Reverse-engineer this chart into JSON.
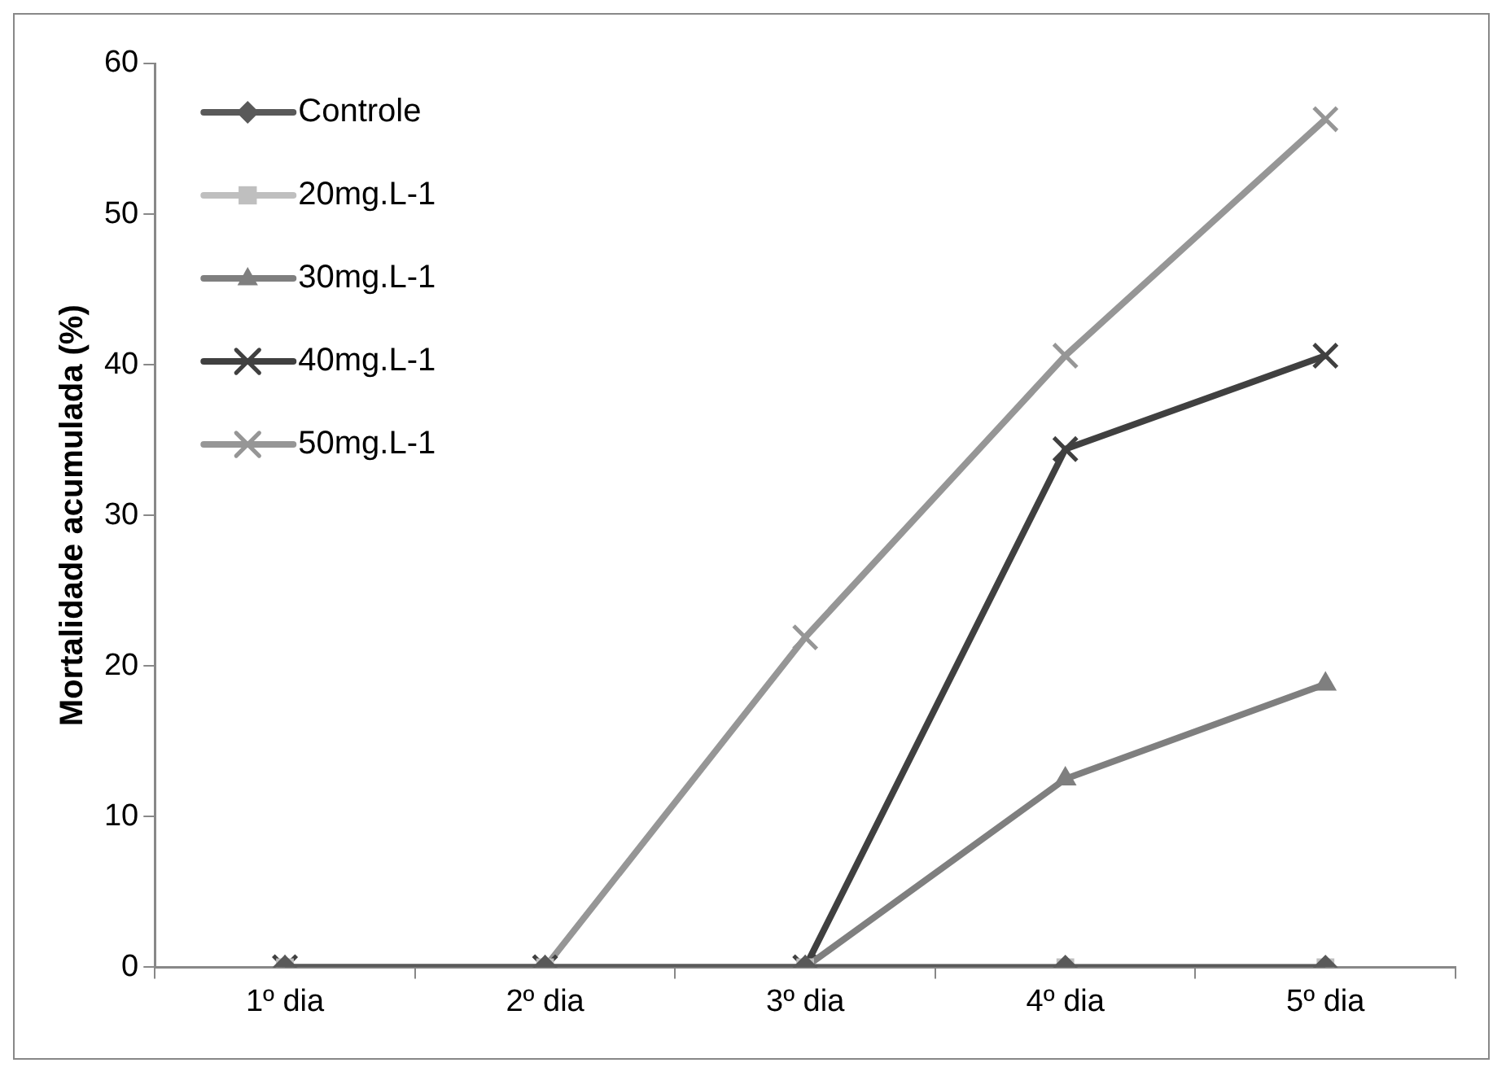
{
  "chart_data": {
    "type": "line",
    "ylabel": "Mortalidade acumulada (%)",
    "categories": [
      "1º dia",
      "2º dia",
      "3º dia",
      "4º dia",
      "5º dia"
    ],
    "series": [
      {
        "name": "Controle",
        "color": "#595959",
        "marker": "diamond",
        "values": [
          0,
          0,
          0,
          0,
          0
        ]
      },
      {
        "name": "20mg.L-1",
        "color": "#bfbfbf",
        "marker": "square",
        "values": [
          0,
          0,
          0,
          0,
          0
        ]
      },
      {
        "name": "30mg.L-1",
        "color": "#7f7f7f",
        "marker": "triangle",
        "values": [
          0,
          0,
          0,
          12.5,
          18.8
        ]
      },
      {
        "name": "40mg.L-1",
        "color": "#404040",
        "marker": "cross",
        "values": [
          0,
          0,
          0,
          34.4,
          40.6
        ]
      },
      {
        "name": "50mg.L-1",
        "color": "#969696",
        "marker": "cross",
        "values": [
          0,
          0,
          21.9,
          40.6,
          56.3
        ]
      }
    ],
    "ylim": [
      0,
      60
    ],
    "yticks": [
      0,
      10,
      20,
      30,
      40,
      50,
      60
    ],
    "grid": false,
    "legend": "top left",
    "line_style": "solid"
  }
}
